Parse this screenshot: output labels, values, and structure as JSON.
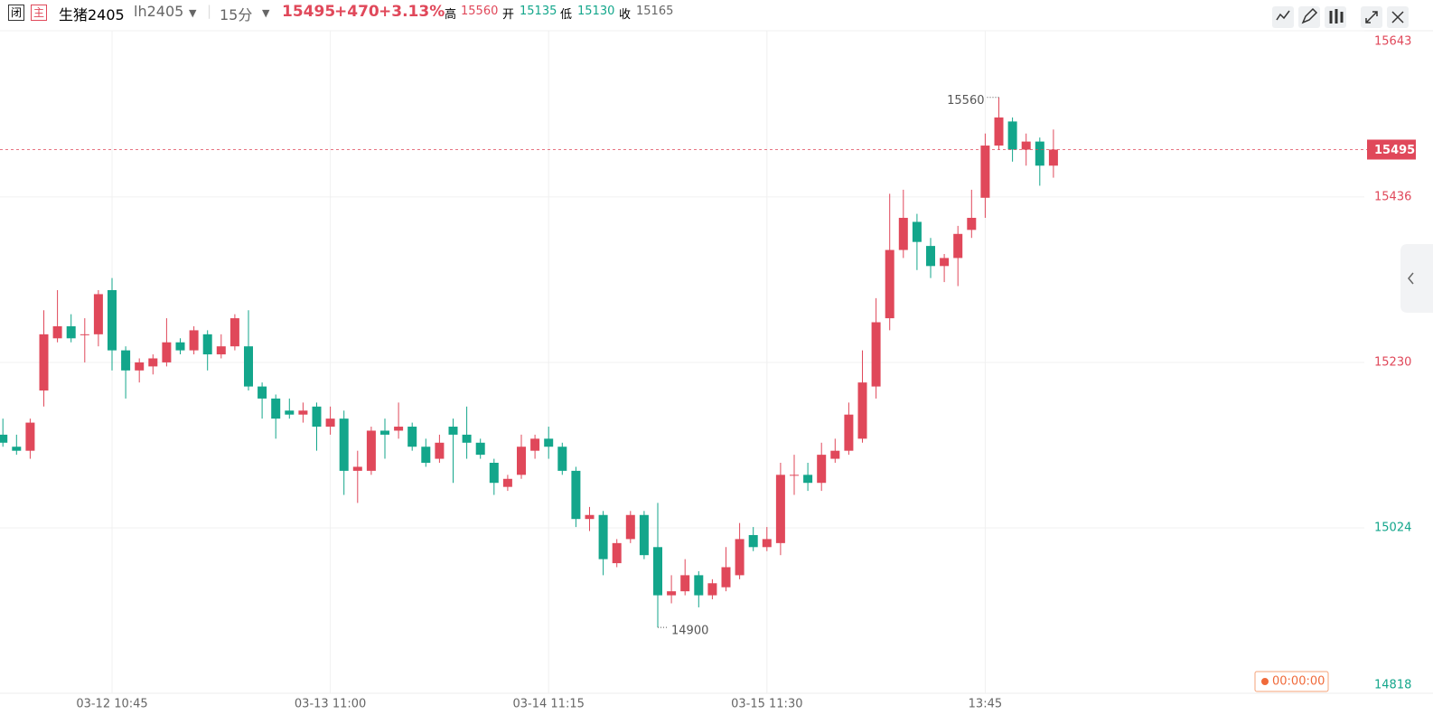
{
  "header": {
    "status": "闭",
    "mode": "主",
    "name": "生猪2405",
    "code": "lh2405",
    "period": "15分",
    "price": 15495,
    "change": "+470",
    "change_pct": "+3.13%",
    "high_label": "高",
    "high": 15560,
    "open_label": "开",
    "open": 15135,
    "low_label": "低",
    "low": 15130,
    "close_label": "收",
    "close": 15165
  },
  "chart_data": {
    "type": "candlestick",
    "categories": [
      null,
      null,
      null,
      null,
      null,
      null,
      null,
      null,
      "03-12 10:45",
      null,
      null,
      null,
      null,
      null,
      null,
      null,
      null,
      null,
      null,
      null,
      null,
      null,
      null,
      null,
      "03-13 11:00",
      null,
      null,
      null,
      null,
      null,
      null,
      null,
      null,
      null,
      null,
      null,
      null,
      null,
      null,
      null,
      "03-14 11:15",
      null,
      null,
      null,
      null,
      null,
      null,
      null,
      null,
      null,
      null,
      null,
      null,
      null,
      null,
      null,
      "03-15 11:30",
      null,
      null,
      null,
      null,
      null,
      null,
      null,
      null,
      null,
      null,
      null,
      null,
      null,
      null,
      null,
      "13:45",
      null,
      null,
      null,
      null,
      null
    ],
    "open": [
      15140,
      15125,
      15120,
      15195,
      15260,
      15275,
      15265,
      15265,
      15320,
      15245,
      15220,
      15225,
      15230,
      15255,
      15245,
      15265,
      15240,
      15250,
      15250,
      15200,
      15185,
      15170,
      15165,
      15175,
      15150,
      15160,
      15095,
      15095,
      15145,
      15145,
      15150,
      15125,
      15110,
      15150,
      15140,
      15130,
      15105,
      15075,
      15090,
      15120,
      15135,
      15125,
      15095,
      15035,
      15040,
      14980,
      15010,
      15040,
      15000,
      14940,
      14945,
      14965,
      14940,
      14950,
      14965,
      15015,
      15000,
      15005,
      15090,
      15090,
      15080,
      15110,
      15120,
      15135,
      15200,
      15285,
      15370,
      15405,
      15375,
      15350,
      15360,
      15395,
      15435,
      15500,
      15530,
      15495,
      15505,
      15475
    ],
    "high": [
      15160,
      15140,
      15160,
      15295,
      15320,
      15290,
      15285,
      15320,
      15335,
      15250,
      15235,
      15240,
      15285,
      15260,
      15275,
      15270,
      15265,
      15290,
      15295,
      15205,
      15190,
      15185,
      15180,
      15180,
      15175,
      15170,
      15120,
      15150,
      15160,
      15180,
      15155,
      15135,
      15140,
      15160,
      15175,
      15135,
      15110,
      15090,
      15140,
      15140,
      15150,
      15130,
      15100,
      15050,
      15045,
      15010,
      15045,
      15045,
      15055,
      14965,
      14985,
      14970,
      14960,
      15000,
      15030,
      15025,
      15025,
      15105,
      15115,
      15105,
      15130,
      15135,
      15180,
      15245,
      15310,
      15440,
      15445,
      15415,
      15385,
      15365,
      15400,
      15445,
      15515,
      15560,
      15535,
      15515,
      15510,
      15520
    ],
    "low": [
      15125,
      15115,
      15110,
      15175,
      15255,
      15255,
      15230,
      15250,
      15220,
      15185,
      15205,
      15215,
      15225,
      15240,
      15240,
      15220,
      15235,
      15245,
      15195,
      15160,
      15135,
      15160,
      15155,
      15120,
      15140,
      15065,
      15055,
      15090,
      15110,
      15135,
      15120,
      15100,
      15105,
      15080,
      15110,
      15110,
      15065,
      15070,
      15085,
      15110,
      15110,
      15090,
      15025,
      15020,
      14965,
      14975,
      15005,
      14985,
      14900,
      14930,
      14940,
      14925,
      14935,
      14945,
      14960,
      14995,
      14995,
      14990,
      15065,
      15070,
      15070,
      15105,
      15115,
      15130,
      15185,
      15270,
      15360,
      15345,
      15335,
      15330,
      15325,
      15385,
      15410,
      15495,
      15480,
      15475,
      15450,
      15460
    ],
    "close": [
      15130,
      15120,
      15155,
      15265,
      15275,
      15260,
      15265,
      15315,
      15245,
      15220,
      15230,
      15235,
      15255,
      15245,
      15270,
      15240,
      15250,
      15285,
      15200,
      15185,
      15160,
      15165,
      15170,
      15150,
      15160,
      15095,
      15100,
      15145,
      15140,
      15150,
      15125,
      15105,
      15130,
      15140,
      15130,
      15115,
      15080,
      15085,
      15125,
      15135,
      15125,
      15095,
      15035,
      15040,
      14985,
      15005,
      15040,
      14990,
      14940,
      14945,
      14965,
      14940,
      14955,
      14975,
      15010,
      15000,
      15010,
      15090,
      15090,
      15080,
      15115,
      15120,
      15165,
      15205,
      15280,
      15370,
      15410,
      15380,
      15350,
      15360,
      15390,
      15410,
      15500,
      15535,
      15495,
      15505,
      15475,
      15495
    ],
    "ylim": [
      14818,
      15643
    ],
    "yticks": [
      15643,
      15436,
      15230,
      15024,
      14818
    ],
    "up_color": "#e0485a",
    "down_color": "#13a68b",
    "grid": true,
    "countdown": "00:00:00"
  }
}
